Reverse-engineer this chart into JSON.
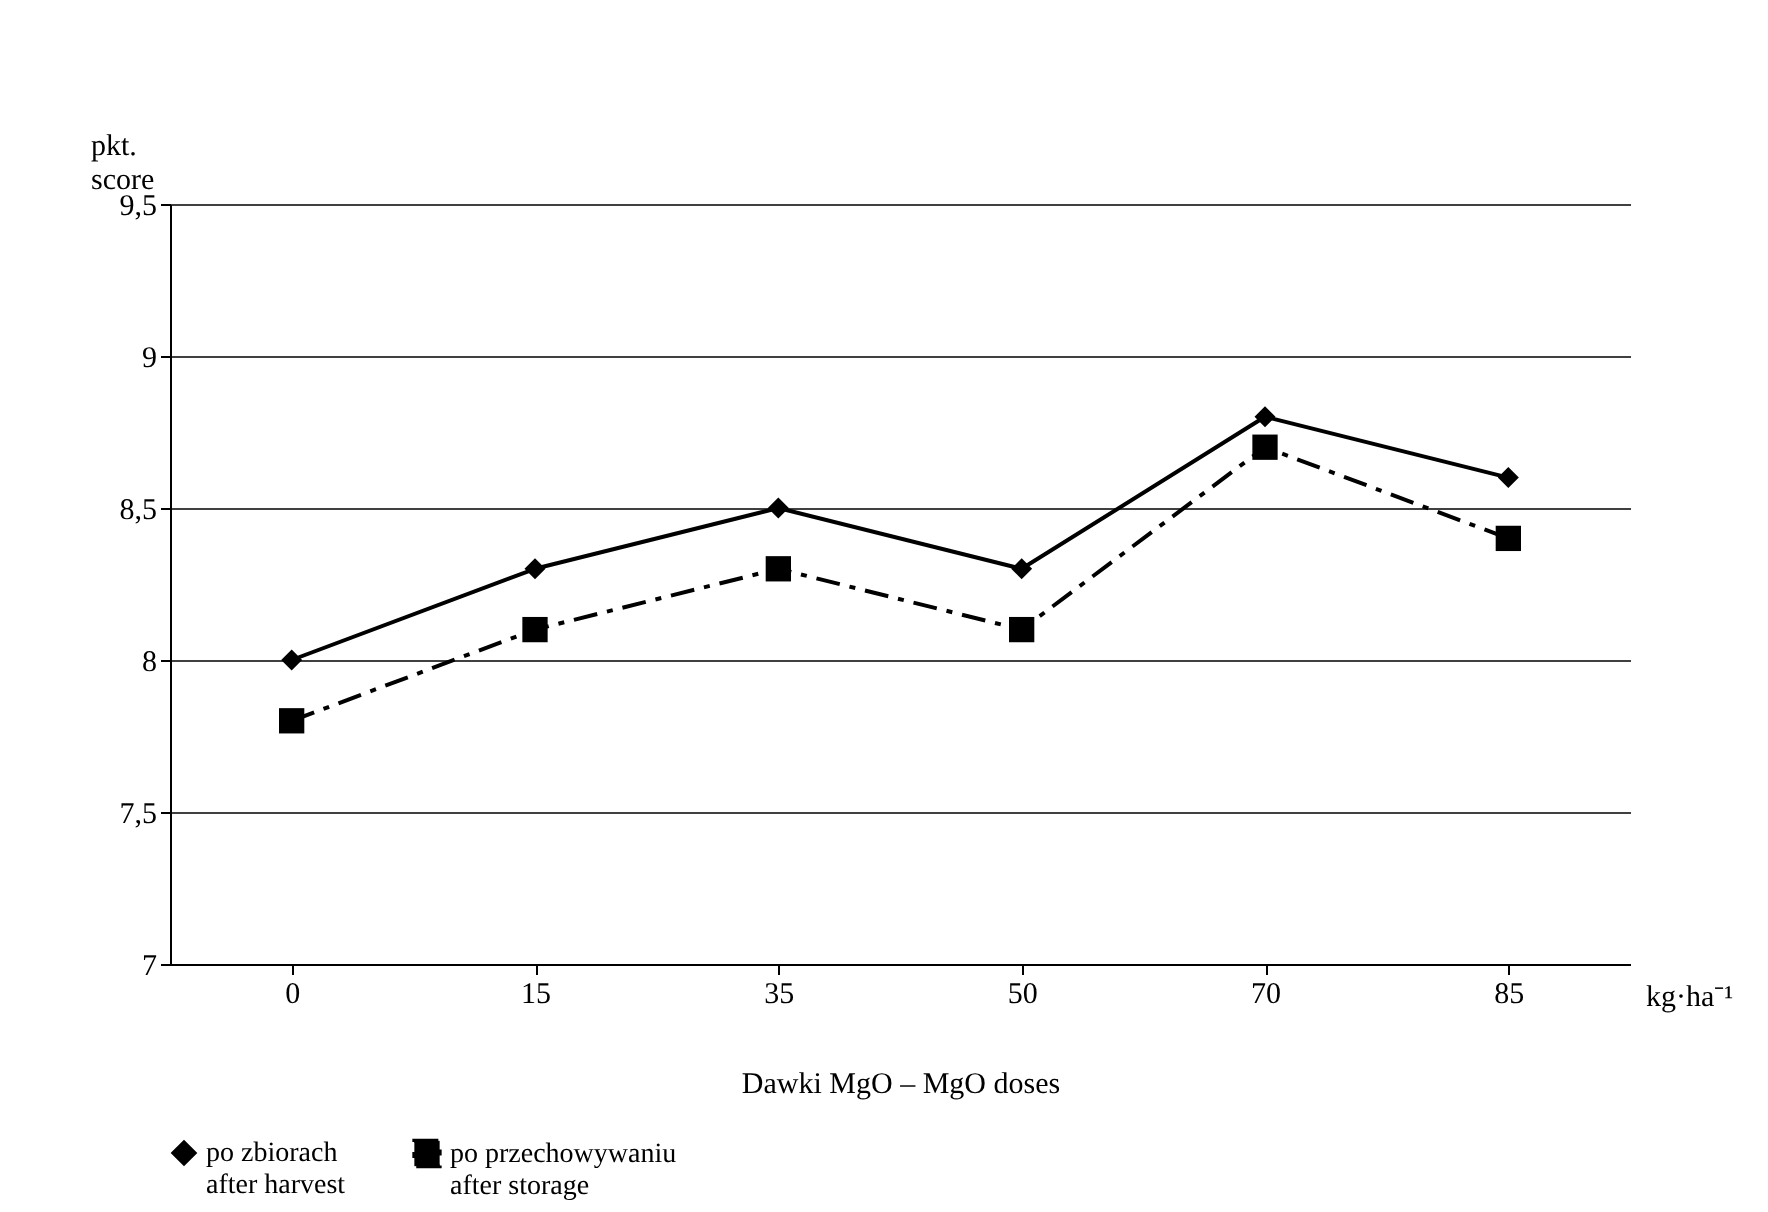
{
  "chart_data": {
    "type": "line",
    "xlabel": "Dawki MgO – MgO doses",
    "ylabel": "pkt.\nscore",
    "categories": [
      "0",
      "15",
      "35",
      "50",
      "70",
      "85"
    ],
    "series": [
      {
        "name": "po zbiorach\nafter harvest",
        "color": "#000000",
        "marker": "diamond",
        "line_style": "solid",
        "values": [
          8.0,
          8.3,
          8.5,
          8.3,
          8.8,
          8.6
        ]
      },
      {
        "name": "po przechowywaniu\nafter storage",
        "color": "#000000",
        "marker": "square",
        "line_style": "dashed",
        "values": [
          7.8,
          8.1,
          8.3,
          8.1,
          8.7,
          8.4
        ]
      }
    ],
    "ylim": [
      7,
      9.5
    ],
    "yticks": [
      {
        "value": 7,
        "label": "7"
      },
      {
        "value": 7.5,
        "label": "7,5"
      },
      {
        "value": 8,
        "label": "8"
      },
      {
        "value": 8.5,
        "label": "8,5"
      },
      {
        "value": 9,
        "label": "9"
      },
      {
        "value": 9.5,
        "label": "9,5"
      }
    ],
    "grid": "y",
    "legend": "bottom",
    "annotations": [
      "kg·ha⁻¹"
    ]
  }
}
